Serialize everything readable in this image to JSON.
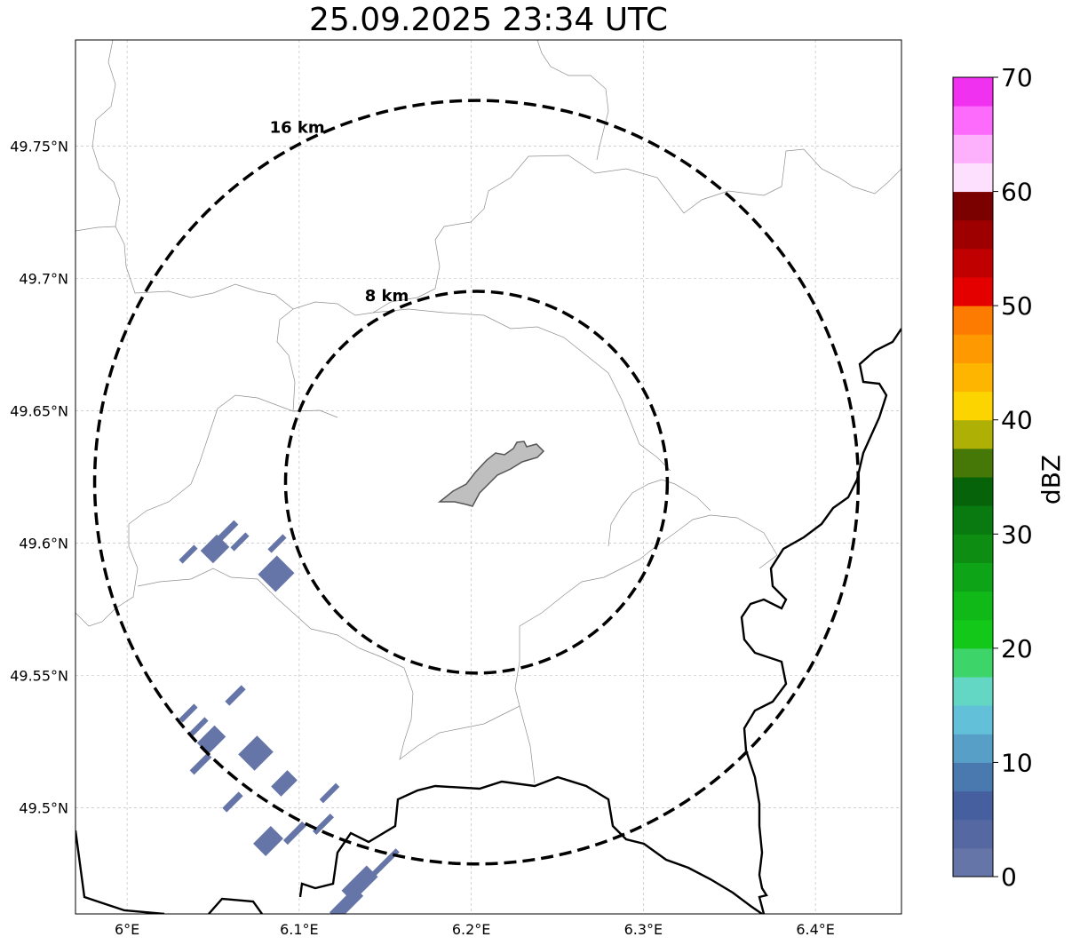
{
  "title": "25.09.2025 23:34 UTC",
  "map": {
    "lon_range": [
      5.97,
      6.45
    ],
    "lat_range": [
      49.46,
      49.79
    ],
    "lon_ticks": [
      {
        "value": 6.0,
        "label": "6°E"
      },
      {
        "value": 6.1,
        "label": "6.1°E"
      },
      {
        "value": 6.2,
        "label": "6.2°E"
      },
      {
        "value": 6.3,
        "label": "6.3°E"
      },
      {
        "value": 6.4,
        "label": "6.4°E"
      }
    ],
    "lat_ticks": [
      {
        "value": 49.75,
        "label": "49.75°N"
      },
      {
        "value": 49.7,
        "label": "49.7°N"
      },
      {
        "value": 49.65,
        "label": "49.65°N"
      },
      {
        "value": 49.6,
        "label": "49.6°N"
      },
      {
        "value": 49.55,
        "label": "49.55°N"
      },
      {
        "value": 49.5,
        "label": "49.5°N"
      }
    ],
    "grid": true,
    "center": {
      "lon": 6.203,
      "lat": 49.623
    },
    "rings": [
      {
        "radius_km": 8,
        "label": "8 km"
      },
      {
        "radius_km": 16,
        "label": "16 km"
      }
    ]
  },
  "colorbar": {
    "label": "dBZ",
    "min": 0,
    "max": 70,
    "step": 2.5,
    "ticks": [
      {
        "value": 0,
        "label": "0"
      },
      {
        "value": 10,
        "label": "10"
      },
      {
        "value": 20,
        "label": "20"
      },
      {
        "value": 30,
        "label": "30"
      },
      {
        "value": 40,
        "label": "40"
      },
      {
        "value": 50,
        "label": "50"
      },
      {
        "value": 60,
        "label": "60"
      },
      {
        "value": 70,
        "label": "70"
      }
    ],
    "colors": [
      "#6675a8",
      "#5668a2",
      "#46609f",
      "#4a79b0",
      "#579fc6",
      "#62c0d9",
      "#63d7c3",
      "#3dd56a",
      "#14c81a",
      "#10b818",
      "#0ea418",
      "#0d8e12",
      "#087a10",
      "#066309",
      "#457806",
      "#aeb006",
      "#fcd500",
      "#feb500",
      "#fe9901",
      "#fe7b01",
      "#e50000",
      "#c00000",
      "#9e0000",
      "#7b0000",
      "#fde0fd",
      "#fdb1fd",
      "#fd6bfd",
      "#f031f0"
    ]
  },
  "colors": {
    "echo": "#6675a8",
    "city": "#bfbfbf",
    "border": "#000000",
    "admin_boundary": "#8f8f8f"
  }
}
